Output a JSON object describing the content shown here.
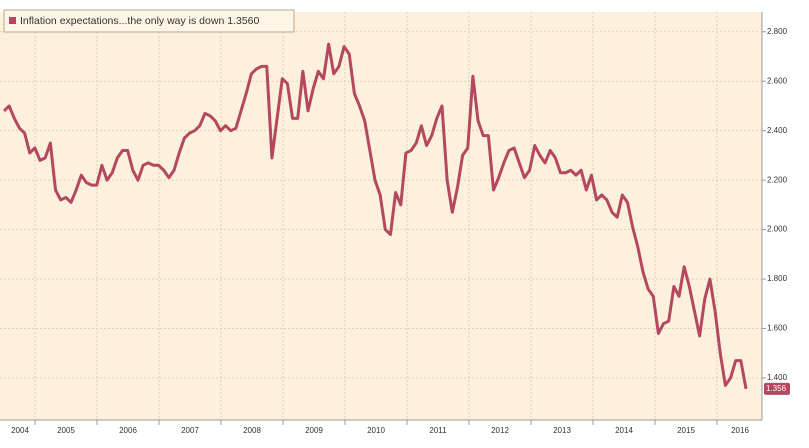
{
  "chart_data": {
    "type": "line",
    "series": [
      {
        "name": "Inflation expectations...the only way is down 1.3560",
        "color": "#b5485f",
        "values": [
          2.48,
          2.5,
          2.45,
          2.41,
          2.39,
          2.31,
          2.33,
          2.28,
          2.29,
          2.35,
          2.16,
          2.12,
          2.13,
          2.11,
          2.16,
          2.22,
          2.19,
          2.18,
          2.18,
          2.26,
          2.2,
          2.23,
          2.29,
          2.32,
          2.32,
          2.24,
          2.2,
          2.26,
          2.27,
          2.26,
          2.26,
          2.24,
          2.21,
          2.24,
          2.31,
          2.37,
          2.39,
          2.4,
          2.42,
          2.47,
          2.46,
          2.44,
          2.4,
          2.42,
          2.4,
          2.41,
          2.48,
          2.55,
          2.63,
          2.65,
          2.66,
          2.66,
          2.29,
          2.45,
          2.61,
          2.59,
          2.45,
          2.45,
          2.64,
          2.48,
          2.57,
          2.64,
          2.61,
          2.75,
          2.63,
          2.66,
          2.74,
          2.71,
          2.55,
          2.5,
          2.44,
          2.32,
          2.2,
          2.14,
          2.0,
          1.98,
          2.15,
          2.1,
          2.31,
          2.32,
          2.35,
          2.42,
          2.34,
          2.38,
          2.45,
          2.5,
          2.2,
          2.07,
          2.17,
          2.3,
          2.33,
          2.62,
          2.44,
          2.38,
          2.38,
          2.16,
          2.21,
          2.27,
          2.32,
          2.33,
          2.27,
          2.21,
          2.24,
          2.34,
          2.3,
          2.27,
          2.32,
          2.29,
          2.23,
          2.23,
          2.24,
          2.22,
          2.24,
          2.16,
          2.22,
          2.12,
          2.14,
          2.12,
          2.07,
          2.05,
          2.14,
          2.11,
          2.01,
          1.93,
          1.83,
          1.76,
          1.73,
          1.58,
          1.62,
          1.63,
          1.77,
          1.73,
          1.85,
          1.77,
          1.67,
          1.57,
          1.72,
          1.8,
          1.67,
          1.5,
          1.37,
          1.4,
          1.47,
          1.47,
          1.356
        ]
      }
    ],
    "last_label": "1.356",
    "x_labels": [
      "2004",
      "2005",
      "2006",
      "2007",
      "2008",
      "2009",
      "2010",
      "2011",
      "2012",
      "2013",
      "2014",
      "2015",
      "2016"
    ],
    "ylim": [
      1.23,
      2.88
    ],
    "yticks": [
      {
        "value": 1.4,
        "label": "1.400"
      },
      {
        "value": 1.6,
        "label": "1.600"
      },
      {
        "value": 1.8,
        "label": "1.800"
      },
      {
        "value": 2.0,
        "label": "2.000"
      },
      {
        "value": 2.2,
        "label": "2.200"
      },
      {
        "value": 2.4,
        "label": "2.400"
      },
      {
        "value": 2.6,
        "label": "2.600"
      },
      {
        "value": 2.8,
        "label": "2.800"
      }
    ],
    "grid": true
  }
}
